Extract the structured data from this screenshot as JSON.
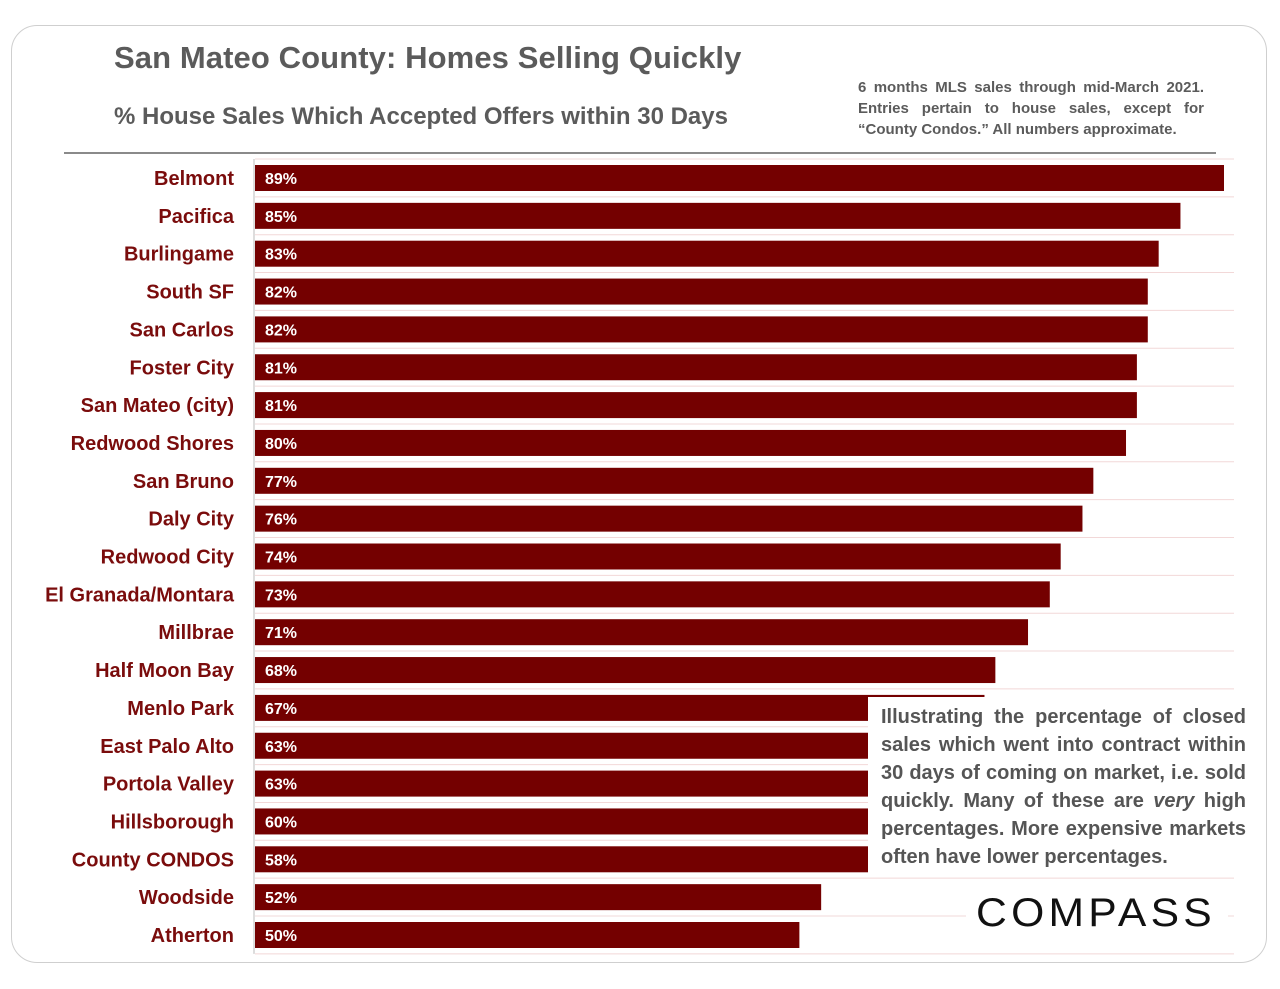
{
  "header": {
    "title": "San Mateo County: Homes Selling Quickly",
    "subtitle": "% House Sales Which Accepted Offers within 30 Days",
    "note": "6 months MLS sales through mid-March 2021. Entries pertain to house sales, except for “County Condos.” All numbers approximate."
  },
  "callout": {
    "text_before": "Illustrating the percentage of closed sales which went into contract within 30 days of coming on market, i.e. sold quickly. Many of these are ",
    "text_em": "very",
    "text_after": " high percentages. More expensive markets often have lower percentages."
  },
  "brand": {
    "logo_text": "COMPASS"
  },
  "colors": {
    "bar": "#740000",
    "label": "#7a0c0c",
    "bar_text": "#ffffff",
    "grid": "#f2d8d8",
    "axis": "#bbbbbb"
  },
  "chart_data": {
    "type": "bar",
    "orientation": "horizontal",
    "title": "San Mateo County: Homes Selling Quickly",
    "subtitle": "% House Sales Which Accepted Offers within 30 Days",
    "xlabel": "",
    "ylabel": "",
    "unit": "%",
    "xlim": [
      0,
      89
    ],
    "categories": [
      "Belmont",
      "Pacifica",
      "Burlingame",
      "South SF",
      "San Carlos",
      "Foster City",
      "San Mateo (city)",
      "Redwood Shores",
      "San Bruno",
      "Daly City",
      "Redwood City",
      "El Granada/Montara",
      "Millbrae",
      "Half Moon Bay",
      "Menlo Park",
      "East Palo Alto",
      "Portola Valley",
      "Hillsborough",
      "County CONDOS",
      "Woodside",
      "Atherton"
    ],
    "values": [
      89,
      85,
      83,
      82,
      82,
      81,
      81,
      80,
      77,
      76,
      74,
      73,
      71,
      68,
      67,
      63,
      63,
      60,
      58,
      52,
      50
    ],
    "value_labels": [
      "89%",
      "85%",
      "83%",
      "82%",
      "82%",
      "81%",
      "81%",
      "80%",
      "77%",
      "76%",
      "74%",
      "73%",
      "71%",
      "68%",
      "67%",
      "63%",
      "63%",
      "60%",
      "58%",
      "52%",
      "50%"
    ]
  }
}
